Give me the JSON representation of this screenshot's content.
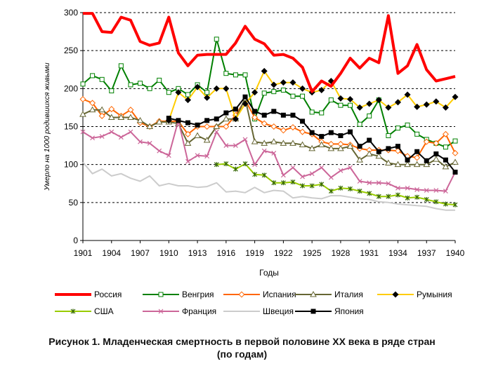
{
  "chart_data": {
    "type": "line",
    "title": "",
    "xlabel": "Годы",
    "ylabel": "Умерло на 1000 родившихся живыми",
    "xlim": [
      1901,
      1940
    ],
    "ylim": [
      0,
      300
    ],
    "x_ticks": [
      1901,
      1904,
      1907,
      1910,
      1913,
      1916,
      1919,
      1922,
      1925,
      1928,
      1931,
      1934,
      1937,
      1940
    ],
    "y_ticks": [
      0,
      50,
      100,
      150,
      200,
      250,
      300
    ],
    "grid": "horizontal-dashed",
    "legend_position": "bottom",
    "series": [
      {
        "name": "Россия",
        "color": "#ff0000",
        "marker": "none",
        "width": 4,
        "x": [
          1901,
          1902,
          1903,
          1904,
          1905,
          1906,
          1907,
          1908,
          1909,
          1910,
          1911,
          1912,
          1913,
          1914,
          1915,
          1916,
          1917,
          1918,
          1919,
          1920,
          1921,
          1922,
          1923,
          1924,
          1925,
          1926,
          1927,
          1928,
          1929,
          1930,
          1931,
          1932,
          1933,
          1934,
          1935,
          1936,
          1937,
          1938,
          1939,
          1940
        ],
        "values": [
          299,
          299,
          275,
          274,
          294,
          290,
          262,
          257,
          260,
          294,
          247,
          230,
          244,
          245,
          245,
          245,
          260,
          282,
          265,
          259,
          244,
          245,
          240,
          228,
          196,
          210,
          203,
          220,
          240,
          227,
          240,
          234,
          296,
          220,
          230,
          258,
          225,
          210,
          213,
          216
        ]
      },
      {
        "name": "Венгрия",
        "color": "#008000",
        "marker": "square-open",
        "width": 2,
        "x": [
          1901,
          1902,
          1903,
          1904,
          1905,
          1906,
          1907,
          1908,
          1909,
          1910,
          1911,
          1912,
          1913,
          1914,
          1915,
          1916,
          1917,
          1918,
          1919,
          1920,
          1921,
          1922,
          1923,
          1924,
          1925,
          1926,
          1927,
          1928,
          1929,
          1930,
          1931,
          1932,
          1933,
          1934,
          1935,
          1936,
          1937,
          1938,
          1939,
          1940
        ],
        "values": [
          206,
          217,
          212,
          197,
          230,
          205,
          207,
          200,
          211,
          195,
          200,
          192,
          205,
          195,
          265,
          220,
          218,
          218,
          160,
          194,
          196,
          198,
          190,
          190,
          169,
          168,
          185,
          178,
          178,
          153,
          164,
          185,
          138,
          148,
          152,
          140,
          133,
          128,
          123,
          131
        ]
      },
      {
        "name": "Испания",
        "color": "#ff6600",
        "marker": "diamond-open",
        "width": 2,
        "x": [
          1901,
          1902,
          1903,
          1904,
          1905,
          1906,
          1907,
          1908,
          1909,
          1910,
          1911,
          1912,
          1913,
          1914,
          1915,
          1916,
          1917,
          1918,
          1919,
          1920,
          1921,
          1922,
          1923,
          1924,
          1925,
          1926,
          1927,
          1928,
          1929,
          1930,
          1931,
          1932,
          1933,
          1934,
          1935,
          1936,
          1937,
          1938,
          1939,
          1940
        ],
        "values": [
          186,
          181,
          164,
          173,
          164,
          172,
          155,
          150,
          157,
          157,
          157,
          140,
          150,
          150,
          150,
          150,
          165,
          185,
          162,
          154,
          150,
          145,
          149,
          143,
          140,
          130,
          127,
          127,
          126,
          121,
          119,
          119,
          119,
          118,
          111,
          109,
          130,
          128,
          140,
          115
        ]
      },
      {
        "name": "Италия",
        "color": "#666633",
        "marker": "triangle-open",
        "width": 2,
        "x": [
          1901,
          1902,
          1903,
          1904,
          1905,
          1906,
          1907,
          1908,
          1909,
          1910,
          1911,
          1912,
          1913,
          1914,
          1915,
          1916,
          1917,
          1918,
          1919,
          1920,
          1921,
          1922,
          1923,
          1924,
          1925,
          1926,
          1927,
          1928,
          1929,
          1930,
          1931,
          1932,
          1933,
          1934,
          1935,
          1936,
          1937,
          1938,
          1939,
          1940
        ],
        "values": [
          166,
          172,
          172,
          162,
          162,
          162,
          158,
          150,
          156,
          156,
          154,
          128,
          138,
          132,
          150,
          160,
          160,
          187,
          130,
          128,
          130,
          128,
          128,
          126,
          121,
          126,
          121,
          121,
          124,
          106,
          114,
          111,
          102,
          100,
          100,
          100,
          100,
          107,
          97,
          103
        ]
      },
      {
        "name": "Румыния",
        "color": "#ffcc00",
        "marker": "diamond-filled",
        "width": 2,
        "x": [
          1910,
          1911,
          1912,
          1913,
          1914,
          1915,
          1916,
          1917,
          1918,
          1919,
          1920,
          1921,
          1922,
          1923,
          1924,
          1925,
          1926,
          1927,
          1928,
          1929,
          1930,
          1931,
          1932,
          1933,
          1934,
          1935,
          1936,
          1937,
          1938,
          1939,
          1940
        ],
        "values": [
          158,
          195,
          185,
          202,
          188,
          200,
          200,
          160,
          180,
          195,
          223,
          205,
          208,
          208,
          200,
          195,
          198,
          210,
          187,
          186,
          175,
          180,
          185,
          175,
          182,
          192,
          176,
          179,
          183,
          175,
          189
        ]
      },
      {
        "name": "США",
        "color": "#99cc00",
        "marker": "asterisk",
        "width": 2,
        "x": [
          1915,
          1916,
          1917,
          1918,
          1919,
          1920,
          1921,
          1922,
          1923,
          1924,
          1925,
          1926,
          1927,
          1928,
          1929,
          1930,
          1931,
          1932,
          1933,
          1934,
          1935,
          1936,
          1937,
          1938,
          1939,
          1940
        ],
        "values": [
          100,
          101,
          94,
          101,
          87,
          86,
          76,
          76,
          77,
          72,
          72,
          74,
          65,
          69,
          68,
          65,
          62,
          58,
          58,
          60,
          56,
          57,
          54,
          51,
          48,
          47
        ]
      },
      {
        "name": "Франция",
        "color": "#cc6699",
        "marker": "x",
        "width": 2,
        "x": [
          1901,
          1902,
          1903,
          1904,
          1905,
          1906,
          1907,
          1908,
          1909,
          1910,
          1911,
          1912,
          1913,
          1914,
          1915,
          1916,
          1917,
          1918,
          1919,
          1920,
          1921,
          1922,
          1923,
          1924,
          1925,
          1926,
          1927,
          1928,
          1929,
          1930,
          1931,
          1932,
          1933,
          1934,
          1935,
          1936,
          1937,
          1938,
          1939,
          1940
        ],
        "values": [
          143,
          135,
          137,
          143,
          136,
          143,
          130,
          128,
          118,
          112,
          158,
          104,
          112,
          111,
          143,
          125,
          125,
          133,
          100,
          118,
          115,
          86,
          96,
          84,
          88,
          96,
          83,
          92,
          96,
          78,
          76,
          76,
          75,
          69,
          69,
          67,
          66,
          66,
          65,
          90
        ]
      },
      {
        "name": "Швеция",
        "color": "#cccccc",
        "marker": "none",
        "width": 2,
        "x": [
          1901,
          1902,
          1903,
          1904,
          1905,
          1906,
          1907,
          1908,
          1909,
          1910,
          1911,
          1912,
          1913,
          1914,
          1915,
          1916,
          1917,
          1918,
          1919,
          1920,
          1921,
          1922,
          1923,
          1924,
          1925,
          1926,
          1927,
          1928,
          1929,
          1930,
          1931,
          1932,
          1933,
          1934,
          1935,
          1936,
          1937,
          1938,
          1939,
          1940
        ],
        "values": [
          103,
          88,
          94,
          85,
          88,
          82,
          78,
          85,
          72,
          75,
          72,
          72,
          70,
          71,
          76,
          64,
          65,
          63,
          70,
          63,
          66,
          65,
          56,
          58,
          56,
          55,
          59,
          59,
          57,
          55,
          54,
          51,
          50,
          48,
          47,
          46,
          45,
          42,
          40,
          40
        ]
      },
      {
        "name": "Япония",
        "color": "#000000",
        "marker": "square-filled",
        "width": 2,
        "x": [
          1910,
          1911,
          1912,
          1913,
          1914,
          1915,
          1916,
          1917,
          1918,
          1919,
          1920,
          1921,
          1922,
          1923,
          1924,
          1925,
          1926,
          1927,
          1928,
          1929,
          1930,
          1931,
          1932,
          1933,
          1934,
          1935,
          1936,
          1937,
          1938,
          1939,
          1940
        ],
        "values": [
          161,
          158,
          155,
          152,
          158,
          160,
          168,
          173,
          189,
          170,
          165,
          170,
          165,
          165,
          157,
          142,
          137,
          142,
          138,
          143,
          124,
          132,
          117,
          121,
          124,
          106,
          117,
          105,
          114,
          106,
          90
        ]
      }
    ]
  },
  "caption": {
    "line1": "Рисунок 1. Младенческая смертность в первой половине XX века в ряде стран",
    "line2": "(по годам)"
  }
}
